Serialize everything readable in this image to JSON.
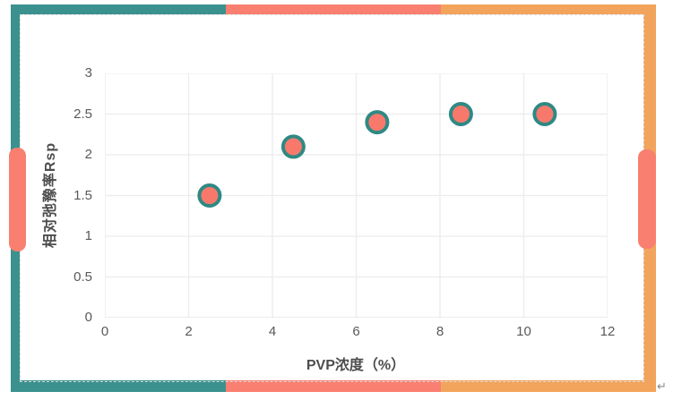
{
  "colors": {
    "teal": "#3A918E",
    "salmon": "#F97F71",
    "orange": "#F2A45C",
    "marker_fill": "#F8796B",
    "marker_stroke": "#2F8984",
    "gridline": "#ECECEC",
    "axis_line": "#E2E2E2",
    "tick_text": "#595959",
    "axis_label_text": "#4D4D4D"
  },
  "page": {
    "return_mark": "↵"
  },
  "chart_data": {
    "type": "scatter",
    "title": "",
    "xlabel": "PVP浓度（%）",
    "ylabel": "相对弛豫率Rsp",
    "x": [
      2.5,
      4.5,
      6.5,
      8.5,
      10.5
    ],
    "y": [
      1.5,
      2.1,
      2.4,
      2.5,
      2.5
    ],
    "xlim": [
      0,
      12
    ],
    "ylim": [
      0,
      3
    ],
    "x_ticks": [
      0,
      2,
      4,
      6,
      8,
      10,
      12
    ],
    "y_ticks": [
      0,
      0.5,
      1,
      1.5,
      2,
      2.5,
      3
    ],
    "grid": true,
    "legend": false,
    "marker": {
      "radius": 11.5,
      "stroke_width": 4
    }
  }
}
